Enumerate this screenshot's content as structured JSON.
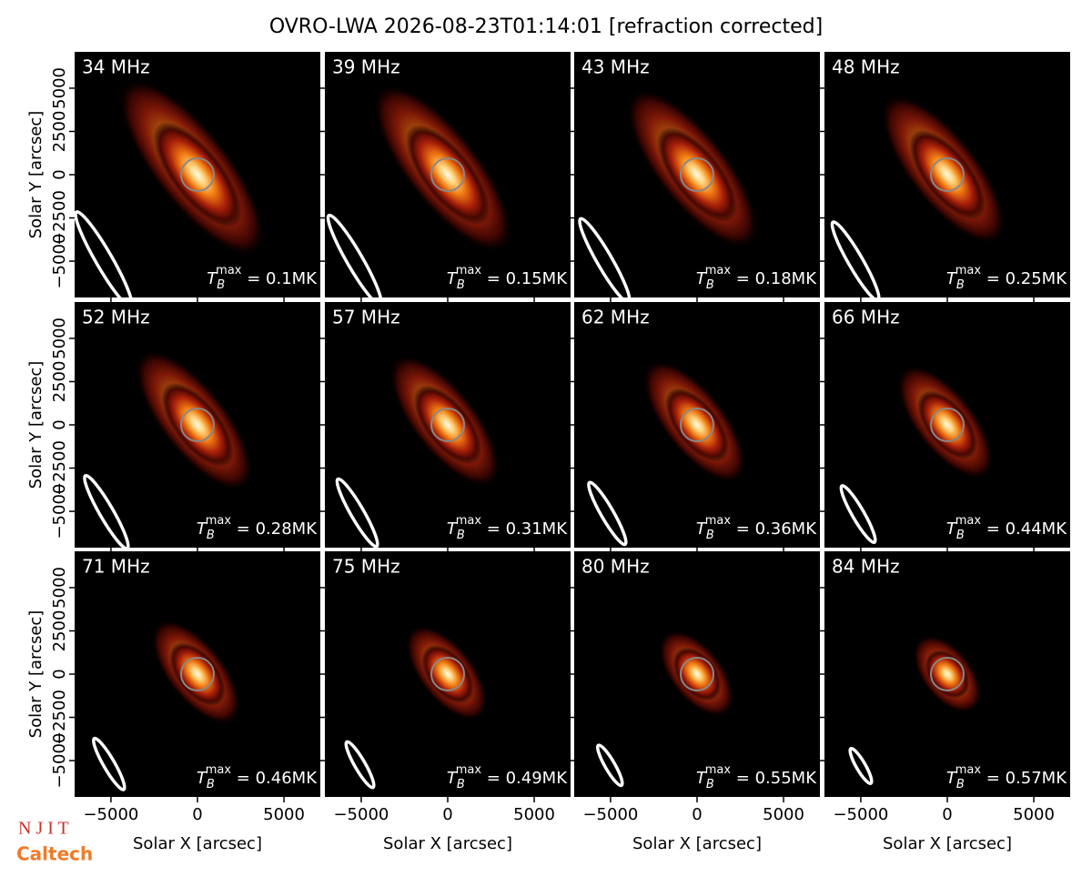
{
  "title": "OVRO-LWA 2026-08-23T01:14:01 [refraction corrected]",
  "logos": [
    "N J I T",
    "Caltech"
  ],
  "axes": {
    "xlim": [
      -7100,
      7100
    ],
    "ylim": [
      -7100,
      7100
    ],
    "xticks": [
      {
        "value": -5000,
        "label": "−5000"
      },
      0,
      5000
    ],
    "yticks": [
      {
        "value": -5000,
        "label": "−5000"
      },
      {
        "value": -2500,
        "label": "−2500"
      },
      0,
      2500,
      5000
    ],
    "xlabel": "Solar X [arcsec]",
    "ylabel": "Solar Y [arcsec]"
  },
  "chart_data": [
    {
      "type": "image",
      "label": "34 MHz",
      "annotation": {
        "t": "T",
        "sub": "B",
        "sup": "max",
        "text": " = 0.1MK"
      }
    },
    {
      "type": "image",
      "label": "39 MHz",
      "annotation": {
        "t": "T",
        "sub": "B",
        "sup": "max",
        "text": " = 0.15MK"
      }
    },
    {
      "type": "image",
      "label": "43 MHz",
      "annotation": {
        "t": "T",
        "sub": "B",
        "sup": "max",
        "text": " = 0.18MK"
      }
    },
    {
      "type": "image",
      "label": "48 MHz",
      "annotation": {
        "t": "T",
        "sub": "B",
        "sup": "max",
        "text": " = 0.25MK"
      }
    },
    {
      "type": "image",
      "label": "52 MHz",
      "annotation": {
        "t": "T",
        "sub": "B",
        "sup": "max",
        "text": " = 0.28MK"
      }
    },
    {
      "type": "image",
      "label": "57 MHz",
      "annotation": {
        "t": "T",
        "sub": "B",
        "sup": "max",
        "text": " = 0.31MK"
      }
    },
    {
      "type": "image",
      "label": "62 MHz",
      "annotation": {
        "t": "T",
        "sub": "B",
        "sup": "max",
        "text": " = 0.36MK"
      }
    },
    {
      "type": "image",
      "label": "66 MHz",
      "annotation": {
        "t": "T",
        "sub": "B",
        "sup": "max",
        "text": " = 0.44MK"
      }
    },
    {
      "type": "image",
      "label": "71 MHz",
      "annotation": {
        "t": "T",
        "sub": "B",
        "sup": "max",
        "text": " = 0.46MK"
      }
    },
    {
      "type": "image",
      "label": "75 MHz",
      "annotation": {
        "t": "T",
        "sub": "B",
        "sup": "max",
        "text": " = 0.49MK"
      }
    },
    {
      "type": "image",
      "label": "80 MHz",
      "annotation": {
        "t": "T",
        "sub": "B",
        "sup": "max",
        "text": " = 0.55MK"
      }
    },
    {
      "type": "image",
      "label": "84 MHz",
      "annotation": {
        "t": "T",
        "sub": "B",
        "sup": "max",
        "text": " = 0.57MK"
      }
    }
  ]
}
